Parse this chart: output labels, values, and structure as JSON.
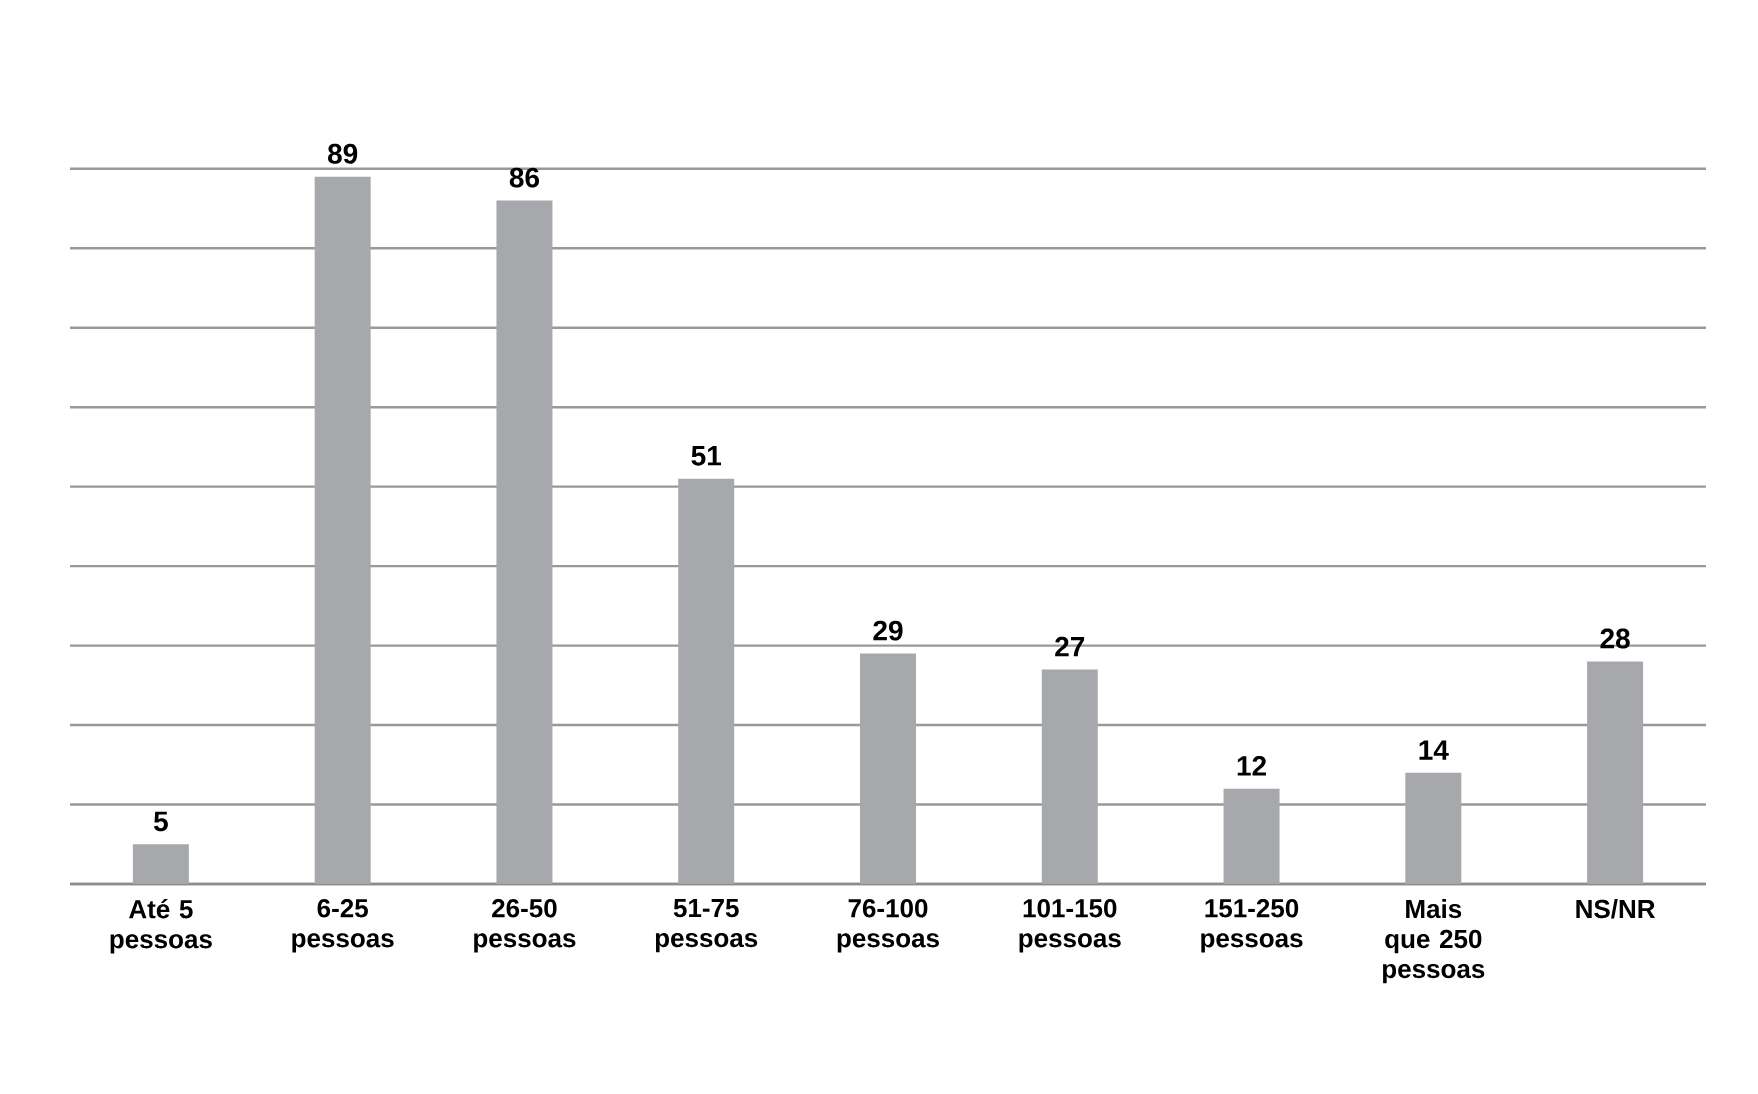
{
  "chart_data": {
    "type": "bar",
    "categories": [
      "Até 5 pessoas",
      "6-25 pessoas",
      "26-50 pessoas",
      "51-75 pessoas",
      "76-100 pessoas",
      "101-150 pessoas",
      "151-250 pessoas",
      "Mais que 250 pessoas",
      "NS/NR"
    ],
    "values": [
      5,
      89,
      86,
      51,
      29,
      27,
      12,
      14,
      28
    ],
    "color": "#a7a8ab",
    "tick_labels": "x",
    "grid": "y",
    "data_labels": true
  }
}
